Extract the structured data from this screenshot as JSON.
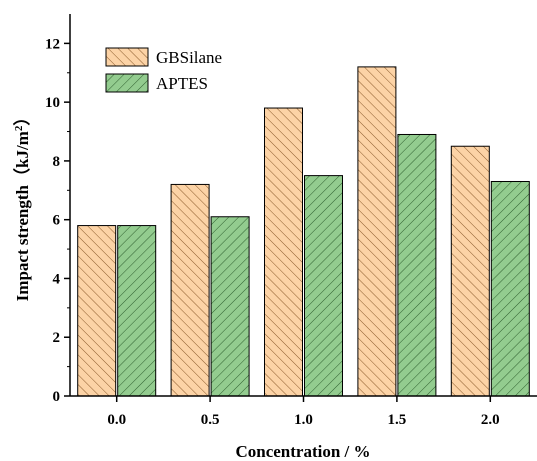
{
  "chart_data": {
    "type": "bar",
    "categories": [
      "0.0",
      "0.5",
      "1.0",
      "1.5",
      "2.0"
    ],
    "series": [
      {
        "name": "GBSilane",
        "values": [
          5.8,
          7.2,
          9.8,
          11.2,
          8.5
        ],
        "color": "#FCD3A6",
        "hatch": "#8B5A2B"
      },
      {
        "name": "APTES",
        "values": [
          5.8,
          6.1,
          7.5,
          8.9,
          7.3
        ],
        "color": "#93CC8F",
        "hatch": "#2F5F2F"
      }
    ],
    "xlabel": "Concentration / %",
    "ylabel_main": "Impact strength（kJ/m",
    "ylabel_sup": "2",
    "ylabel_end": "）",
    "ylim": [
      0,
      13
    ],
    "yticks": [
      "0",
      "2",
      "4",
      "6",
      "8",
      "10",
      "12"
    ],
    "legend_position": "top-left",
    "grid": false
  }
}
